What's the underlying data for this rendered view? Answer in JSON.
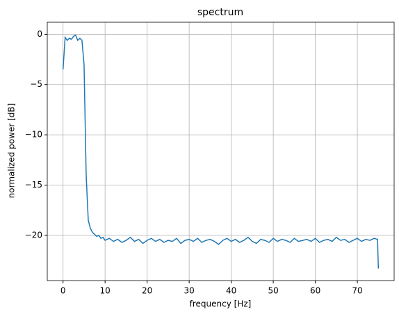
{
  "chart_data": {
    "type": "line",
    "title": "spectrum",
    "x_label": "frequency [Hz]",
    "y_label": "normalized power [dB]",
    "x": [
      0,
      0.5,
      1,
      1.5,
      2,
      2.5,
      3,
      3.5,
      4,
      4.5,
      5,
      5.5,
      6,
      6.5,
      7,
      7.5,
      8,
      8.5,
      9,
      9.5,
      10,
      11,
      12,
      13,
      14,
      15,
      16,
      17,
      18,
      19,
      20,
      21,
      22,
      23,
      24,
      25,
      26,
      27,
      28,
      29,
      30,
      31,
      32,
      33,
      34,
      35,
      36,
      37,
      38,
      39,
      40,
      41,
      42,
      43,
      44,
      45,
      46,
      47,
      48,
      49,
      50,
      51,
      52,
      53,
      54,
      55,
      56,
      57,
      58,
      59,
      60,
      61,
      62,
      63,
      64,
      65,
      66,
      67,
      68,
      69,
      70,
      71,
      72,
      73,
      74,
      74.8,
      75
    ],
    "series": [
      {
        "name": "spectrum",
        "color": "#1f77b4",
        "values": [
          -3.5,
          -0.3,
          -0.6,
          -0.4,
          -0.5,
          -0.2,
          -0.1,
          -0.6,
          -0.4,
          -0.6,
          -3,
          -14,
          -18.5,
          -19.3,
          -19.7,
          -19.9,
          -20.1,
          -20,
          -20.3,
          -20.2,
          -20.5,
          -20.3,
          -20.6,
          -20.4,
          -20.7,
          -20.5,
          -20.2,
          -20.6,
          -20.4,
          -20.8,
          -20.5,
          -20.3,
          -20.6,
          -20.4,
          -20.7,
          -20.5,
          -20.6,
          -20.3,
          -20.8,
          -20.5,
          -20.4,
          -20.6,
          -20.3,
          -20.7,
          -20.5,
          -20.4,
          -20.6,
          -20.9,
          -20.5,
          -20.3,
          -20.6,
          -20.4,
          -20.7,
          -20.5,
          -20.2,
          -20.6,
          -20.8,
          -20.4,
          -20.5,
          -20.7,
          -20.3,
          -20.6,
          -20.4,
          -20.5,
          -20.7,
          -20.3,
          -20.6,
          -20.5,
          -20.4,
          -20.6,
          -20.3,
          -20.7,
          -20.5,
          -20.4,
          -20.6,
          -20.2,
          -20.5,
          -20.4,
          -20.7,
          -20.5,
          -20.3,
          -20.6,
          -20.4,
          -20.5,
          -20.3,
          -20.4,
          -23.3
        ]
      }
    ],
    "xlim": [
      -3.75,
      78.75
    ],
    "ylim": [
      -24.5,
      1.2
    ],
    "xticks": [
      0,
      10,
      20,
      30,
      40,
      50,
      60,
      70
    ],
    "yticks": [
      0,
      {
        "value": -5,
        "label": "−5"
      },
      {
        "value": -10,
        "label": "−10"
      },
      {
        "value": -15,
        "label": "−15"
      },
      {
        "value": -20,
        "label": "−20"
      }
    ],
    "grid": true
  }
}
